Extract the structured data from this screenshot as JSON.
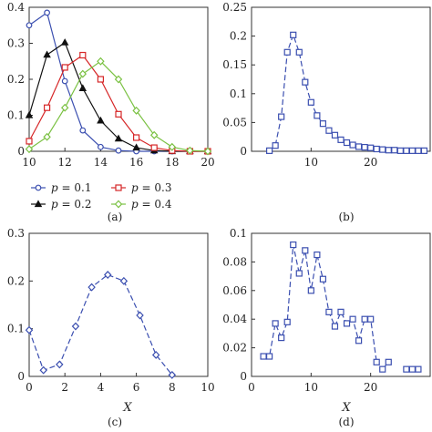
{
  "figure": {
    "captions": [
      "(a)",
      "(b)",
      "(c)",
      "(d)"
    ]
  },
  "chart_data": [
    {
      "type": "line",
      "panel": "(a)",
      "xlabel": "",
      "ylabel": "",
      "xlim": [
        10,
        20
      ],
      "ylim": [
        0,
        0.4
      ],
      "xticks": [
        10,
        12,
        14,
        16,
        18,
        20
      ],
      "yticks": [
        0,
        0.1,
        0.2,
        0.3,
        0.4
      ],
      "xtick_labels": [
        "10",
        "12",
        "14",
        "16",
        "18",
        "20"
      ],
      "ytick_labels": [
        "0",
        "0.1",
        "0.2",
        "0.3",
        "0.4"
      ],
      "grid": false,
      "legend_position": "below",
      "x": [
        10,
        11,
        12,
        13,
        14,
        15,
        16,
        17,
        18,
        19,
        20
      ],
      "series": [
        {
          "name": "p = 0.1",
          "label_var": "p",
          "label_val": " = 0.1",
          "color": "#3b4fb0",
          "marker": "circle",
          "values": [
            0.35,
            0.385,
            0.195,
            0.058,
            0.012,
            0.002,
            0,
            0,
            0,
            0,
            0
          ]
        },
        {
          "name": "p = 0.2",
          "label_var": "p",
          "label_val": " = 0.2",
          "color": "#111111",
          "marker": "triangle",
          "values": [
            0.1,
            0.268,
            0.302,
            0.175,
            0.085,
            0.035,
            0.01,
            0.002,
            0,
            0,
            0
          ]
        },
        {
          "name": "p = 0.3",
          "label_var": "p",
          "label_val": " = 0.3",
          "color": "#d62728",
          "marker": "square",
          "values": [
            0.028,
            0.121,
            0.233,
            0.267,
            0.2,
            0.103,
            0.038,
            0.01,
            0.002,
            0,
            0
          ]
        },
        {
          "name": "p = 0.4",
          "label_var": "p",
          "label_val": " = 0.4",
          "color": "#7ac142",
          "marker": "diamond",
          "values": [
            0.006,
            0.04,
            0.121,
            0.215,
            0.25,
            0.2,
            0.113,
            0.045,
            0.012,
            0.002,
            0
          ]
        }
      ]
    },
    {
      "type": "line",
      "panel": "(b)",
      "xlabel": "",
      "ylabel": "",
      "xlim": [
        0,
        30
      ],
      "ylim": [
        0,
        0.25
      ],
      "xticks": [
        10,
        20
      ],
      "yticks": [
        0,
        0.05,
        0.1,
        0.15,
        0.2,
        0.25
      ],
      "xtick_labels": [
        "10",
        "20"
      ],
      "ytick_labels": [
        "0",
        "0.05",
        "0.1",
        "0.15",
        "0.2",
        "0.25"
      ],
      "grid": false,
      "series": [
        {
          "color": "#3b4fb0",
          "marker": "square",
          "dashed": true,
          "x": [
            3,
            4,
            5,
            6,
            7,
            8,
            9,
            10,
            11,
            12,
            13,
            14,
            15,
            16,
            17,
            18,
            19,
            20,
            21,
            22,
            23,
            24,
            25,
            26,
            27,
            28,
            29
          ],
          "values": [
            0.001,
            0.01,
            0.06,
            0.172,
            0.202,
            0.172,
            0.12,
            0.085,
            0.062,
            0.048,
            0.036,
            0.028,
            0.02,
            0.015,
            0.011,
            0.008,
            0.007,
            0.006,
            0.004,
            0.003,
            0.002,
            0.002,
            0.001,
            0.001,
            0.001,
            0.001,
            0.001
          ]
        }
      ]
    },
    {
      "type": "line",
      "panel": "(c)",
      "xlabel": "X",
      "ylabel": "",
      "xlim": [
        0,
        10
      ],
      "ylim": [
        0,
        0.3
      ],
      "xticks": [
        0,
        2,
        4,
        6,
        8,
        10
      ],
      "yticks": [
        0,
        0.1,
        0.2,
        0.3
      ],
      "xtick_labels": [
        "0",
        "2",
        "4",
        "6",
        "8",
        "10"
      ],
      "ytick_labels": [
        "0",
        "0.1",
        "0.2",
        "0.3"
      ],
      "grid": false,
      "series": [
        {
          "color": "#3b4fb0",
          "marker": "diamond",
          "dashed": true,
          "x": [
            0,
            0.8,
            1.7,
            2.6,
            3.5,
            4.4,
            5.3,
            6.2,
            7.1,
            8.0
          ],
          "values": [
            0.097,
            0.013,
            0.025,
            0.105,
            0.187,
            0.213,
            0.2,
            0.128,
            0.045,
            0.003
          ]
        }
      ]
    },
    {
      "type": "line",
      "panel": "(d)",
      "xlabel": "X",
      "ylabel": "",
      "xlim": [
        0,
        30
      ],
      "ylim": [
        0,
        0.1
      ],
      "xticks": [
        0,
        10,
        20
      ],
      "yticks": [
        0,
        0.02,
        0.04,
        0.06,
        0.08,
        0.1
      ],
      "xtick_labels": [
        "0",
        "10",
        "20"
      ],
      "ytick_labels": [
        "0",
        "0.02",
        "0.04",
        "0.06",
        "0.08",
        "0.1"
      ],
      "grid": false,
      "series": [
        {
          "color": "#3b4fb0",
          "marker": "square",
          "dashed": true,
          "gaps_after": [
            21,
            23
          ],
          "x": [
            2,
            3,
            4,
            5,
            6,
            7,
            8,
            9,
            10,
            11,
            12,
            13,
            14,
            15,
            16,
            17,
            18,
            19,
            20,
            21,
            22,
            23,
            26,
            27,
            28
          ],
          "values": [
            0.014,
            0.014,
            0.037,
            0.027,
            0.038,
            0.092,
            0.072,
            0.088,
            0.06,
            0.085,
            0.068,
            0.045,
            0.035,
            0.045,
            0.037,
            0.04,
            0.025,
            0.04,
            0.04,
            0.01,
            0.005,
            0.01,
            0.005,
            0.005,
            0.005
          ]
        }
      ]
    }
  ]
}
